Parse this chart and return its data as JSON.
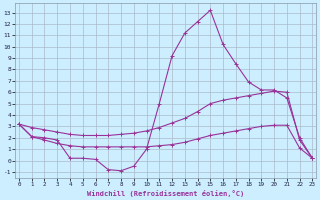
{
  "bg_color": "#cceeff",
  "grid_color": "#aabbcc",
  "line_color": "#993399",
  "xlabel": "Windchill (Refroidissement éolien,°C)",
  "xticks": [
    0,
    1,
    2,
    3,
    4,
    5,
    6,
    7,
    8,
    9,
    10,
    11,
    12,
    13,
    14,
    15,
    16,
    17,
    18,
    19,
    20,
    21,
    22,
    23
  ],
  "yticks": [
    -1,
    0,
    1,
    2,
    3,
    4,
    5,
    6,
    7,
    8,
    9,
    10,
    11,
    12,
    13
  ],
  "xlim": [
    -0.3,
    23.3
  ],
  "ylim": [
    -1.5,
    13.8
  ],
  "line1_x": [
    0,
    1,
    2,
    3,
    4,
    5,
    6,
    7,
    8,
    9,
    10,
    11,
    12,
    13,
    14,
    15,
    16,
    17,
    18,
    19,
    20,
    21,
    22,
    23
  ],
  "line1_y": [
    3.2,
    2.1,
    2.0,
    1.8,
    0.2,
    0.2,
    0.1,
    -0.8,
    -0.9,
    -0.5,
    1.0,
    5.0,
    9.2,
    11.2,
    12.2,
    13.2,
    10.2,
    8.5,
    6.9,
    6.2,
    6.2,
    5.5,
    2.0,
    0.2
  ],
  "line2_x": [
    0,
    1,
    2,
    3,
    4,
    5,
    6,
    7,
    8,
    9,
    10,
    11,
    12,
    13,
    14,
    15,
    16,
    17,
    18,
    19,
    20,
    21,
    22,
    23
  ],
  "line2_y": [
    3.2,
    2.9,
    2.7,
    2.5,
    2.3,
    2.2,
    2.2,
    2.2,
    2.3,
    2.4,
    2.6,
    2.9,
    3.3,
    3.7,
    4.3,
    5.0,
    5.3,
    5.5,
    5.7,
    5.9,
    6.1,
    6.0,
    1.8,
    0.2
  ],
  "line3_x": [
    0,
    1,
    2,
    3,
    4,
    5,
    6,
    7,
    8,
    9,
    10,
    11,
    12,
    13,
    14,
    15,
    16,
    17,
    18,
    19,
    20,
    21,
    22,
    23
  ],
  "line3_y": [
    3.2,
    2.1,
    1.8,
    1.5,
    1.3,
    1.2,
    1.2,
    1.2,
    1.2,
    1.2,
    1.2,
    1.3,
    1.4,
    1.6,
    1.9,
    2.2,
    2.4,
    2.6,
    2.8,
    3.0,
    3.1,
    3.1,
    1.1,
    0.2
  ]
}
